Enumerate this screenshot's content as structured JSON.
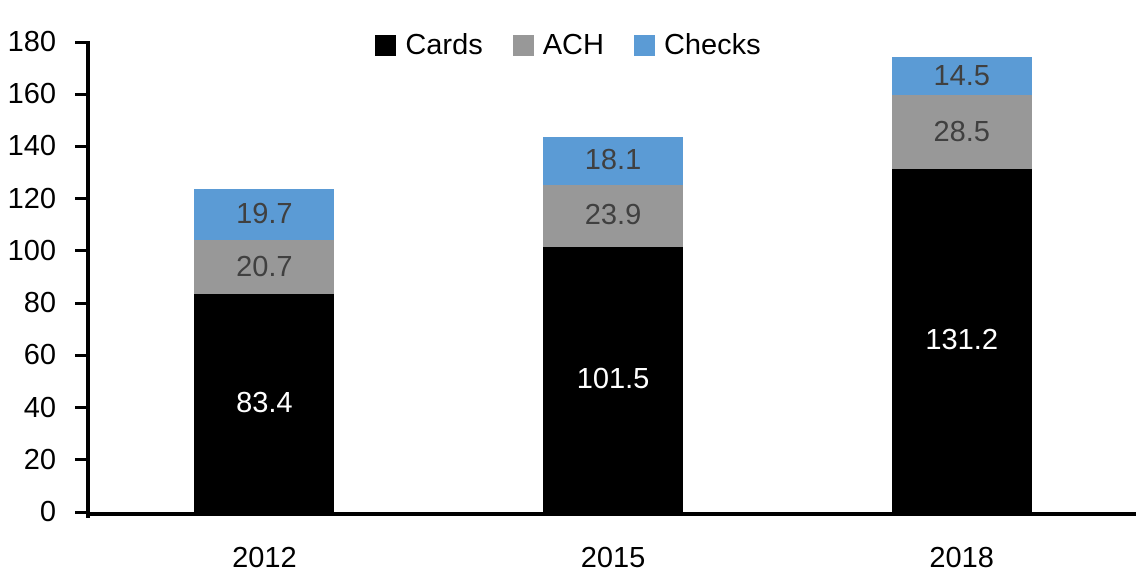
{
  "chart_data": {
    "type": "bar",
    "stacked": true,
    "title": "",
    "categories": [
      "2012",
      "2015",
      "2018"
    ],
    "series": [
      {
        "name": "Cards",
        "color": "#000000",
        "label_color": "#FFFFFF",
        "values": [
          83.4,
          101.5,
          131.2
        ]
      },
      {
        "name": "ACH",
        "color": "#989898",
        "label_color": "#404040",
        "values": [
          20.7,
          23.9,
          28.5
        ]
      },
      {
        "name": "Checks",
        "color": "#5B9BD5",
        "label_color": "#404040",
        "values": [
          19.7,
          18.1,
          14.5
        ]
      }
    ],
    "totals": [
      123.8,
      143.5,
      174.2
    ],
    "ylim": [
      0,
      180
    ],
    "yticks": [
      0,
      20,
      40,
      60,
      80,
      100,
      120,
      140,
      160,
      180
    ],
    "grid": false,
    "legend_position": "top-center",
    "axis_color": "#000000",
    "background_color": "#FFFFFF"
  }
}
